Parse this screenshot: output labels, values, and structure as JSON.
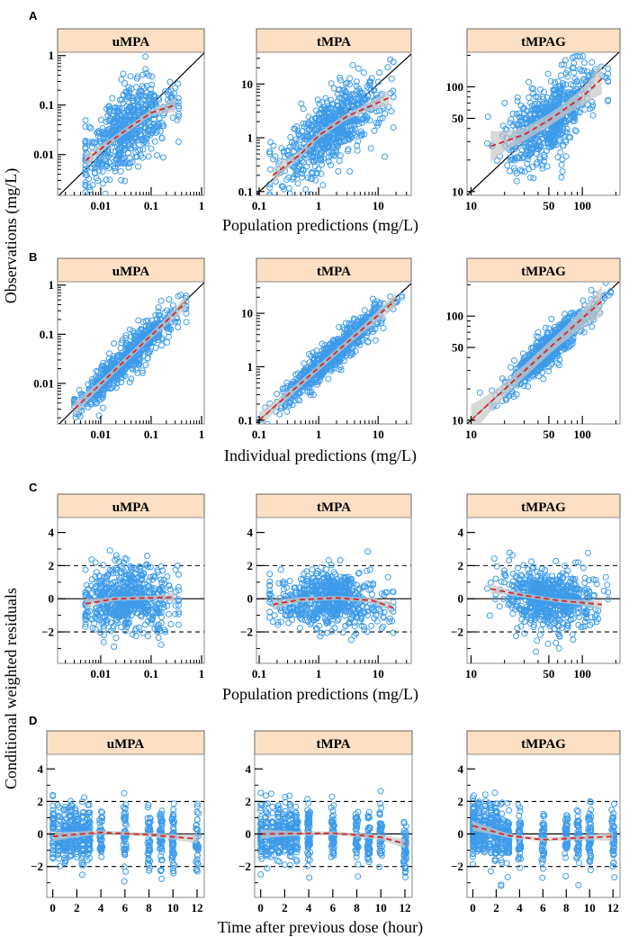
{
  "figure": {
    "panel_letters": [
      "A",
      "B",
      "C",
      "D"
    ],
    "ylabel_obs": "Observations (mg/L)",
    "ylabel_cwres": "Conditional weighted residuals",
    "xlabels": [
      "Population predictions (mg/L)",
      "Individual predictions (mg/L)",
      "Population predictions (mg/L)",
      "Time after previous dose (hour)"
    ]
  },
  "colors": {
    "points": "#3d9be9",
    "loess": "#d62728",
    "band": "#c8c8c8",
    "strip": "#fde0c4",
    "frame": "#8a8a8a"
  },
  "chart_data": [
    {
      "row": "A",
      "title": "uMPA",
      "type": "scatter",
      "xscale": "log",
      "yscale": "log",
      "xlim": [
        0.0014,
        1.13
      ],
      "ylim": [
        0.0015,
        1.17
      ],
      "xticks": [
        "0.01",
        "0.1",
        "1"
      ],
      "yticks": [
        "0.01",
        "0.1",
        "1"
      ],
      "reference": "identity",
      "loess": [
        [
          0.005,
          0.0075
        ],
        [
          0.01,
          0.013
        ],
        [
          0.03,
          0.03
        ],
        [
          0.1,
          0.07
        ],
        [
          0.3,
          0.1
        ]
      ],
      "gen": {
        "n": 600,
        "xmu": -1.5,
        "xsd": 0.45,
        "xmin": 0.005,
        "xmax": 0.35,
        "noise": 0.4
      }
    },
    {
      "row": "A",
      "title": "tMPA",
      "type": "scatter",
      "xscale": "log",
      "yscale": "log",
      "xlim": [
        0.09,
        36
      ],
      "ylim": [
        0.085,
        39
      ],
      "xticks": [
        "0.1",
        "1",
        "10"
      ],
      "yticks": [
        "0.1",
        "1",
        "10"
      ],
      "reference": "identity",
      "loess": [
        [
          0.17,
          0.2
        ],
        [
          0.5,
          0.5
        ],
        [
          1,
          1.1
        ],
        [
          3,
          2.5
        ],
        [
          10,
          4.5
        ],
        [
          15,
          5.5
        ]
      ],
      "gen": {
        "n": 650,
        "xmu": 0.2,
        "xsd": 0.45,
        "xmin": 0.15,
        "xmax": 18,
        "noise": 0.35
      }
    },
    {
      "row": "A",
      "title": "tMPAG",
      "type": "scatter",
      "xscale": "log",
      "yscale": "log",
      "xlim": [
        9.2,
        218
      ],
      "ylim": [
        9.2,
        214
      ],
      "xticks": [
        "10",
        "50",
        "100"
      ],
      "yticks": [
        "10",
        "50",
        "100"
      ],
      "reference": "identity",
      "loess": [
        [
          15,
          27
        ],
        [
          30,
          35
        ],
        [
          50,
          48
        ],
        [
          100,
          80
        ],
        [
          150,
          120
        ]
      ],
      "gen": {
        "n": 650,
        "xmu": 1.7,
        "xsd": 0.2,
        "xmin": 14,
        "xmax": 170,
        "noise": 0.18
      }
    },
    {
      "row": "B",
      "title": "uMPA",
      "type": "scatter",
      "xscale": "log",
      "yscale": "log",
      "xlim": [
        0.0014,
        1.13
      ],
      "ylim": [
        0.0015,
        1.17
      ],
      "xticks": [
        "0.01",
        "0.1",
        "1"
      ],
      "yticks": [
        "0.01",
        "0.1",
        "1"
      ],
      "reference": "identity",
      "loess": [
        [
          0.003,
          0.003
        ],
        [
          0.05,
          0.048
        ],
        [
          0.5,
          0.45
        ]
      ],
      "gen": {
        "n": 650,
        "xmu": -1.5,
        "xsd": 0.5,
        "xmin": 0.003,
        "xmax": 0.5,
        "noise": 0.18
      }
    },
    {
      "row": "B",
      "title": "tMPA",
      "type": "scatter",
      "xscale": "log",
      "yscale": "log",
      "xlim": [
        0.09,
        36
      ],
      "ylim": [
        0.085,
        39
      ],
      "xticks": [
        "0.1",
        "1",
        "10"
      ],
      "yticks": [
        "0.1",
        "1",
        "10"
      ],
      "reference": "identity",
      "loess": [
        [
          0.1,
          0.1
        ],
        [
          2,
          1.9
        ],
        [
          20,
          18
        ]
      ],
      "gen": {
        "n": 650,
        "xmu": 0.25,
        "xsd": 0.45,
        "xmin": 0.1,
        "xmax": 25,
        "noise": 0.15
      }
    },
    {
      "row": "B",
      "title": "tMPAG",
      "type": "scatter",
      "xscale": "log",
      "yscale": "log",
      "xlim": [
        9.2,
        218
      ],
      "ylim": [
        9.2,
        214
      ],
      "xticks": [
        "10",
        "50",
        "100"
      ],
      "yticks": [
        "10",
        "50",
        "100"
      ],
      "reference": "identity",
      "loess": [
        [
          10,
          10
        ],
        [
          50,
          49
        ],
        [
          150,
          140
        ]
      ],
      "gen": {
        "n": 650,
        "xmu": 1.7,
        "xsd": 0.2,
        "xmin": 12,
        "xmax": 180,
        "noise": 0.08
      }
    },
    {
      "row": "C",
      "title": "uMPA",
      "type": "scatter",
      "xscale": "log",
      "yscale": "linear",
      "xlim": [
        0.0014,
        1.13
      ],
      "ylim": [
        -3.9,
        4.9
      ],
      "xticks": [
        "0.01",
        "0.1",
        "1"
      ],
      "yticks": [
        "-2",
        "0",
        "2",
        "4"
      ],
      "reference": "residual",
      "loess": [
        [
          0.005,
          -0.3
        ],
        [
          0.02,
          0
        ],
        [
          0.1,
          0.05
        ],
        [
          0.3,
          0.1
        ]
      ],
      "gen": {
        "n": 600,
        "xmu": -1.5,
        "xsd": 0.45,
        "xmin": 0.005,
        "xmax": 0.35,
        "noise": 1.0
      }
    },
    {
      "row": "C",
      "title": "tMPA",
      "type": "scatter",
      "xscale": "log",
      "yscale": "linear",
      "xlim": [
        0.09,
        36
      ],
      "ylim": [
        -3.9,
        4.9
      ],
      "xticks": [
        "0.1",
        "1",
        "10"
      ],
      "yticks": [
        "-2",
        "0",
        "2",
        "4"
      ],
      "reference": "residual",
      "loess": [
        [
          0.17,
          -0.35
        ],
        [
          0.5,
          -0.05
        ],
        [
          2,
          0.05
        ],
        [
          8,
          -0.1
        ],
        [
          18,
          -0.55
        ]
      ],
      "gen": {
        "n": 650,
        "xmu": 0.2,
        "xsd": 0.45,
        "xmin": 0.15,
        "xmax": 18,
        "noise": 0.85
      }
    },
    {
      "row": "C",
      "title": "tMPAG",
      "type": "scatter",
      "xscale": "log",
      "yscale": "linear",
      "xlim": [
        9.2,
        218
      ],
      "ylim": [
        -3.9,
        4.9
      ],
      "xticks": [
        "10",
        "50",
        "100"
      ],
      "yticks": [
        "-2",
        "0",
        "2",
        "4"
      ],
      "reference": "residual",
      "loess": [
        [
          15,
          0.6
        ],
        [
          30,
          0.2
        ],
        [
          60,
          -0.1
        ],
        [
          150,
          -0.35
        ]
      ],
      "gen": {
        "n": 650,
        "xmu": 1.7,
        "xsd": 0.2,
        "xmin": 14,
        "xmax": 170,
        "noise": 0.9
      }
    },
    {
      "row": "D",
      "title": "uMPA",
      "type": "scatter",
      "xscale": "linear",
      "yscale": "linear",
      "xlim": [
        -0.5,
        12.6
      ],
      "ylim": [
        -3.9,
        4.9
      ],
      "xticks": [
        "0",
        "2",
        "4",
        "6",
        "8",
        "10",
        "12"
      ],
      "yticks": [
        "-2",
        "0",
        "2",
        "4"
      ],
      "reference": "residual",
      "loess": [
        [
          0,
          -0.15
        ],
        [
          4,
          0.1
        ],
        [
          8,
          -0.05
        ],
        [
          12,
          -0.3
        ]
      ],
      "gen": {
        "n": 600,
        "times": [
          0,
          0.5,
          1,
          1.5,
          2,
          2.5,
          3,
          4,
          6,
          8,
          9,
          10,
          12
        ],
        "noise": 0.95
      }
    },
    {
      "row": "D",
      "title": "tMPA",
      "type": "scatter",
      "xscale": "linear",
      "yscale": "linear",
      "xlim": [
        -0.5,
        12.6
      ],
      "ylim": [
        -3.9,
        4.9
      ],
      "xticks": [
        "0",
        "2",
        "4",
        "6",
        "8",
        "10",
        "12"
      ],
      "yticks": [
        "-2",
        "0",
        "2",
        "4"
      ],
      "reference": "residual",
      "loess": [
        [
          0,
          0
        ],
        [
          6,
          0.05
        ],
        [
          10,
          -0.2
        ],
        [
          12,
          -0.6
        ]
      ],
      "gen": {
        "n": 650,
        "times": [
          0,
          0.5,
          1,
          1.5,
          2,
          2.5,
          3,
          4,
          6,
          8,
          9,
          10,
          12
        ],
        "noise": 0.85
      }
    },
    {
      "row": "D",
      "title": "tMPAG",
      "type": "scatter",
      "xscale": "linear",
      "yscale": "linear",
      "xlim": [
        -0.5,
        12.6
      ],
      "ylim": [
        -3.9,
        4.9
      ],
      "xticks": [
        "0",
        "2",
        "4",
        "6",
        "8",
        "10",
        "12"
      ],
      "yticks": [
        "-2",
        "0",
        "2",
        "4"
      ],
      "reference": "residual",
      "loess": [
        [
          0,
          0.5
        ],
        [
          3,
          -0.1
        ],
        [
          6,
          -0.35
        ],
        [
          12,
          -0.15
        ]
      ],
      "gen": {
        "n": 650,
        "times": [
          0,
          0.5,
          1,
          1.5,
          2,
          2.5,
          3,
          4,
          6,
          8,
          9,
          10,
          12
        ],
        "noise": 0.9
      }
    }
  ]
}
